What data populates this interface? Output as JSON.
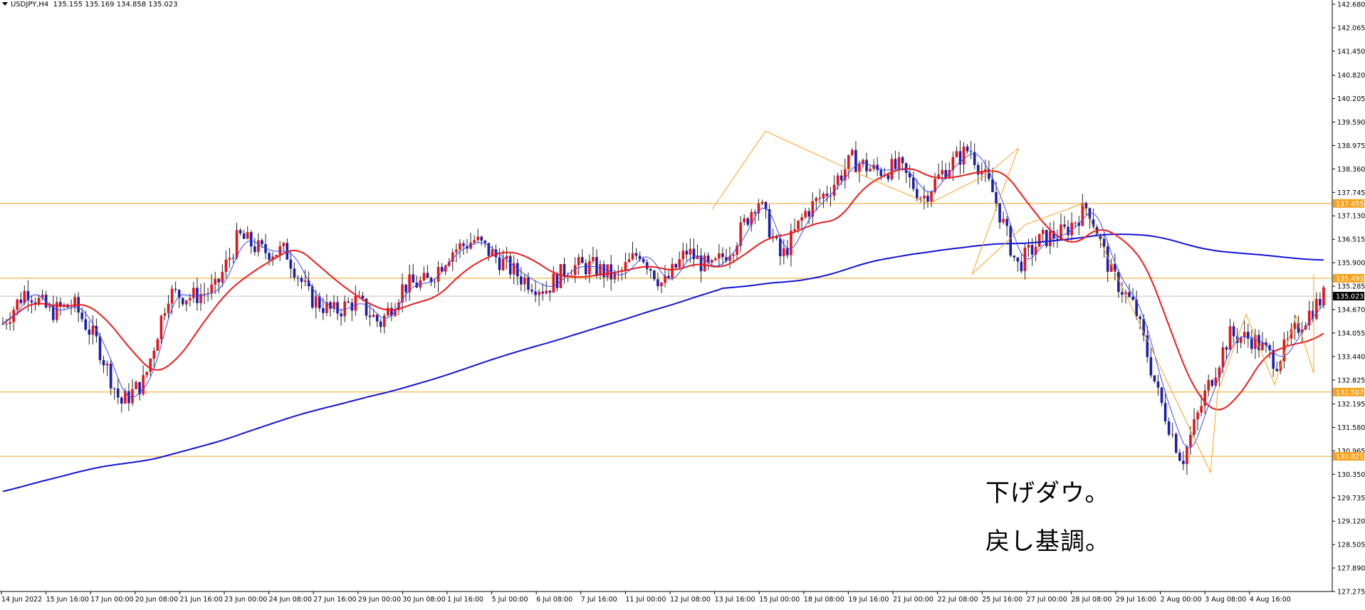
{
  "header": {
    "symbol": "USDJPY,H4",
    "ohlc": "135.155 135.169 134.858 135.023"
  },
  "annotations": [
    "下げダウ。",
    "戻し基調。"
  ],
  "colors": {
    "background": "#ffffff",
    "candle_bull": "#e8121b",
    "candle_bear": "#1b1fae",
    "ma_fast": "#3a49f2",
    "ma_mid": "#ee1c1c",
    "ma_slow": "#1313d9",
    "levels": "#f7a21c",
    "zigzag": "#f7a21c",
    "price_tag": "#000000"
  },
  "chart_data": {
    "type": "candlestick",
    "title": "USDJPY,H4",
    "ylim": [
      127.275,
      142.68
    ],
    "y_ticks": [
      "142.680",
      "142.065",
      "141.450",
      "140.820",
      "140.205",
      "139.590",
      "138.975",
      "138.360",
      "137.745",
      "137.130",
      "136.515",
      "135.900",
      "135.285",
      "134.670",
      "134.055",
      "133.440",
      "132.825",
      "132.195",
      "131.580",
      "130.965",
      "130.350",
      "129.735",
      "129.120",
      "128.505",
      "127.890",
      "127.275"
    ],
    "x_ticks": [
      "14 Jun 2022",
      "15 Jun 16:00",
      "17 Jun 00:00",
      "20 Jun 08:00",
      "21 Jun 16:00",
      "23 Jun 00:00",
      "24 Jun 08:00",
      "27 Jun 16:00",
      "29 Jun 00:00",
      "30 Jun 08:00",
      "1 Jul 16:00",
      "5 Jul 00:00",
      "6 Jul 08:00",
      "7 Jul 16:00",
      "11 Jul 00:00",
      "12 Jul 08:00",
      "13 Jul 16:00",
      "15 Jul 00:00",
      "18 Jul 08:00",
      "19 Jul 16:00",
      "21 Jul 00:00",
      "22 Jul 08:00",
      "25 Jul 16:00",
      "27 Jul 00:00",
      "28 Jul 08:00",
      "29 Jul 16:00",
      "2 Aug 00:00",
      "3 Aug 08:00",
      "4 Aug 16:00"
    ],
    "levels": [
      137.455,
      135.493,
      132.507,
      130.821
    ],
    "current_price": 135.023,
    "series": [
      {
        "name": "close_path",
        "kind": "waypoints",
        "values": [
          134.3,
          135.2,
          134.6,
          134.8,
          133.8,
          132.2,
          132.8,
          135.1,
          135.0,
          135.2,
          136.6,
          136.2,
          136.2,
          135.0,
          134.6,
          134.9,
          134.3,
          135.3,
          135.4,
          136.2,
          136.5,
          136.0,
          135.5,
          135.2,
          135.8,
          135.8,
          135.5,
          136.2,
          135.3,
          136.2,
          135.7,
          136.4,
          137.6,
          136.0,
          137.2,
          137.8,
          138.6,
          138.3,
          138.4,
          137.6,
          138.4,
          138.9,
          137.7,
          135.8,
          136.5,
          136.7,
          137.4,
          135.6,
          134.7,
          132.4,
          130.7,
          132.5,
          134.0,
          133.9,
          133.3,
          134.3,
          135.023
        ]
      },
      {
        "name": "swing_highs",
        "kind": "zigzag",
        "values": [
          137.3,
          139.35,
          138.2,
          137.45,
          138.2,
          138.9,
          135.6,
          136.9,
          137.45,
          130.4,
          132.5,
          134.55,
          132.7,
          134.5,
          133.0,
          135.6
        ]
      }
    ],
    "legend": "none",
    "grid": false
  }
}
